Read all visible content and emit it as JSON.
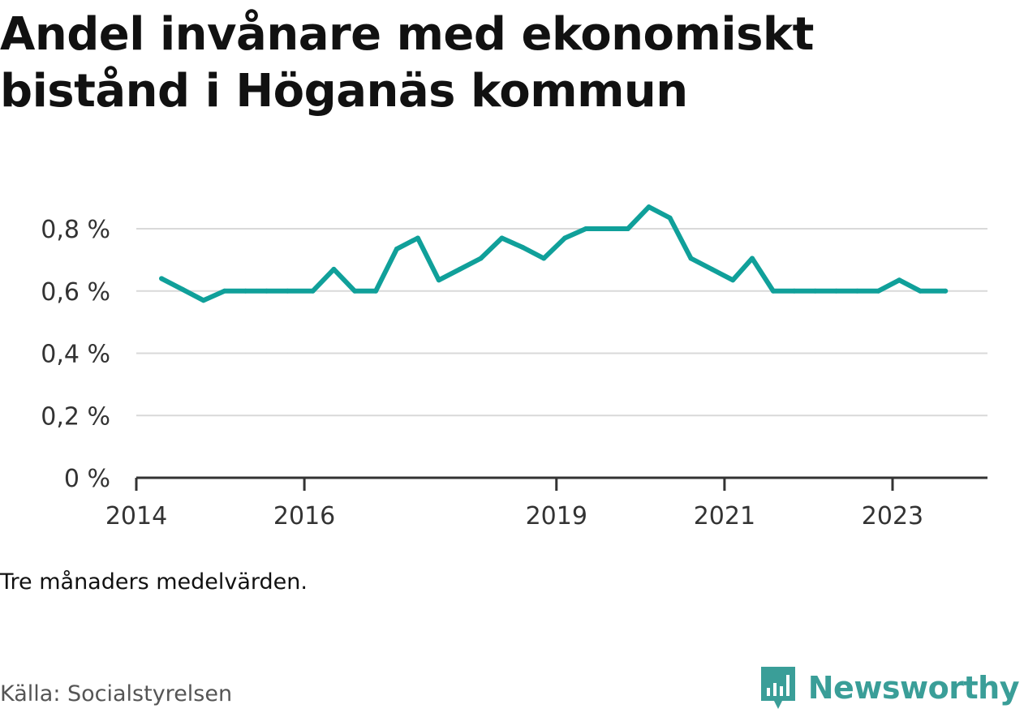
{
  "title": "Andel invånare med ekonomiskt bistånd i Höganäs kommun",
  "note": "Tre månaders medelvärden.",
  "source": "Källa: Socialstyrelsen",
  "brand": {
    "name": "Newsworthy",
    "icon": "newsworthy-logo-icon",
    "color": "#3a9e98"
  },
  "colors": {
    "line": "#10a09a",
    "grid": "#d9d9d9",
    "axis": "#333333",
    "text": "#333333"
  },
  "chart_data": {
    "type": "line",
    "title": "Andel invånare med ekonomiskt bistånd i Höganäs kommun",
    "xlabel": "",
    "ylabel": "",
    "ylim": [
      0,
      0.8
    ],
    "yticks": [
      {
        "value": 0,
        "label": "0 %"
      },
      {
        "value": 0.2,
        "label": "0,2 %"
      },
      {
        "value": 0.4,
        "label": "0,4 %"
      },
      {
        "value": 0.6,
        "label": "0,6 %"
      },
      {
        "value": 0.8,
        "label": "0,8 %"
      }
    ],
    "xlim": [
      2014.0,
      2024.13
    ],
    "xticks": [
      {
        "value": 2014,
        "label": "2014"
      },
      {
        "value": 2016,
        "label": "2016"
      },
      {
        "value": 2019,
        "label": "2019"
      },
      {
        "value": 2021,
        "label": "2021"
      },
      {
        "value": 2023,
        "label": "2023"
      }
    ],
    "grid": true,
    "series": [
      {
        "values": [
          {
            "x": 2014.3,
            "y": 0.64
          },
          {
            "x": 2014.55,
            "y": 0.605
          },
          {
            "x": 2014.8,
            "y": 0.57
          },
          {
            "x": 2015.05,
            "y": 0.6
          },
          {
            "x": 2015.3,
            "y": 0.6
          },
          {
            "x": 2015.55,
            "y": 0.6
          },
          {
            "x": 2015.8,
            "y": 0.6
          },
          {
            "x": 2016.1,
            "y": 0.6
          },
          {
            "x": 2016.35,
            "y": 0.67
          },
          {
            "x": 2016.6,
            "y": 0.6
          },
          {
            "x": 2016.85,
            "y": 0.6
          },
          {
            "x": 2017.1,
            "y": 0.735
          },
          {
            "x": 2017.35,
            "y": 0.77
          },
          {
            "x": 2017.6,
            "y": 0.635
          },
          {
            "x": 2017.85,
            "y": 0.67
          },
          {
            "x": 2018.1,
            "y": 0.705
          },
          {
            "x": 2018.35,
            "y": 0.77
          },
          {
            "x": 2018.6,
            "y": 0.74
          },
          {
            "x": 2018.85,
            "y": 0.705
          },
          {
            "x": 2019.1,
            "y": 0.77
          },
          {
            "x": 2019.35,
            "y": 0.8
          },
          {
            "x": 2019.6,
            "y": 0.8
          },
          {
            "x": 2019.85,
            "y": 0.8
          },
          {
            "x": 2020.1,
            "y": 0.87
          },
          {
            "x": 2020.35,
            "y": 0.835
          },
          {
            "x": 2020.6,
            "y": 0.705
          },
          {
            "x": 2020.85,
            "y": 0.67
          },
          {
            "x": 2021.1,
            "y": 0.635
          },
          {
            "x": 2021.33,
            "y": 0.705
          },
          {
            "x": 2021.58,
            "y": 0.6
          },
          {
            "x": 2021.83,
            "y": 0.6
          },
          {
            "x": 2022.08,
            "y": 0.6
          },
          {
            "x": 2022.33,
            "y": 0.6
          },
          {
            "x": 2022.58,
            "y": 0.6
          },
          {
            "x": 2022.83,
            "y": 0.6
          },
          {
            "x": 2023.08,
            "y": 0.635
          },
          {
            "x": 2023.33,
            "y": 0.6
          },
          {
            "x": 2023.63,
            "y": 0.6
          }
        ]
      }
    ]
  }
}
